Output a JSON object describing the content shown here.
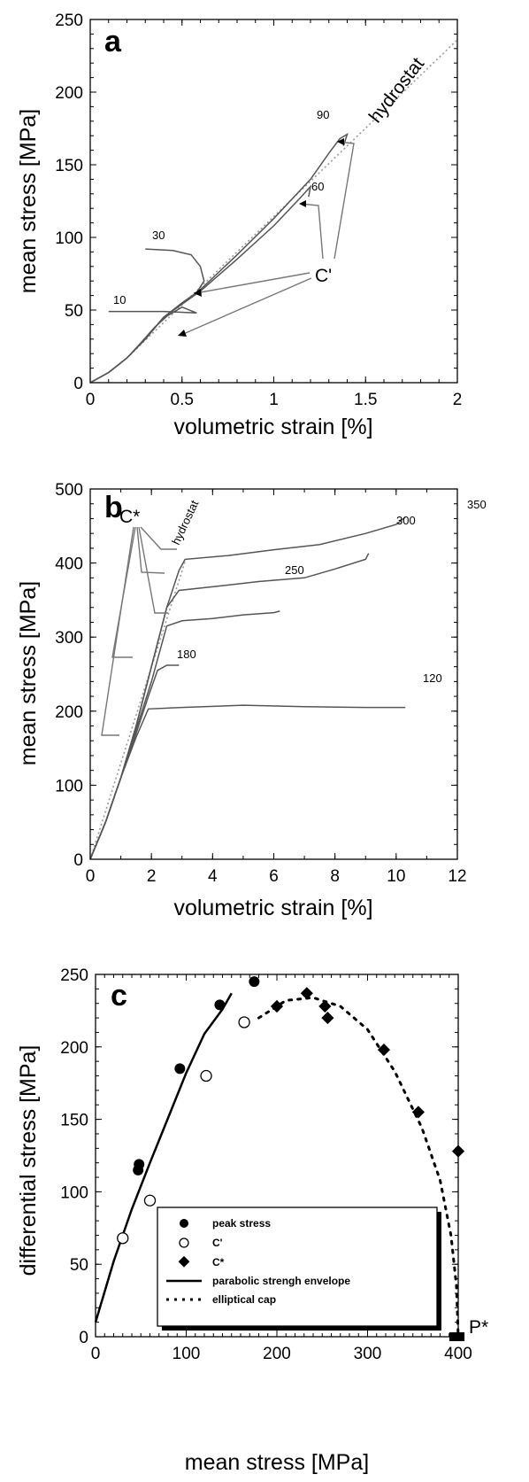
{
  "chart_data": [
    {
      "panel": "a",
      "type": "line",
      "xlabel": "volumetric strain [%]",
      "ylabel": "mean stress [MPa]",
      "xlim": [
        0,
        2
      ],
      "ylim": [
        0,
        250
      ],
      "xticks": [
        "0",
        "0.5",
        "1",
        "1.5",
        "2"
      ],
      "yticks": [
        "0",
        "50",
        "100",
        "150",
        "200",
        "250"
      ],
      "annotations": [
        "C'",
        "hydrostat"
      ],
      "series": [
        {
          "name": "10",
          "points": [
            [
              0,
              0
            ],
            [
              0.1,
              7
            ],
            [
              0.2,
              17
            ],
            [
              0.28,
              28
            ],
            [
              0.35,
              38
            ],
            [
              0.42,
              46
            ],
            [
              0.5,
              52
            ],
            [
              0.58,
              48
            ],
            [
              0.4,
              49
            ],
            [
              0.1,
              49
            ]
          ]
        },
        {
          "name": "30",
          "points": [
            [
              0,
              0
            ],
            [
              0.1,
              7
            ],
            [
              0.2,
              17
            ],
            [
              0.3,
              30
            ],
            [
              0.4,
              45
            ],
            [
              0.5,
              55
            ],
            [
              0.58,
              62
            ],
            [
              0.62,
              70
            ],
            [
              0.6,
              80
            ],
            [
              0.55,
              88
            ],
            [
              0.45,
              91
            ],
            [
              0.3,
              92
            ]
          ]
        },
        {
          "name": "60",
          "points": [
            [
              0,
              0
            ],
            [
              0.1,
              7
            ],
            [
              0.2,
              17
            ],
            [
              0.3,
              30
            ],
            [
              0.4,
              45
            ],
            [
              0.6,
              63
            ],
            [
              0.8,
              85
            ],
            [
              1.0,
              108
            ],
            [
              1.15,
              128
            ],
            [
              1.2,
              135
            ],
            [
              1.19,
              128
            ]
          ]
        },
        {
          "name": "90",
          "points": [
            [
              0,
              0
            ],
            [
              0.1,
              7
            ],
            [
              0.2,
              17
            ],
            [
              0.3,
              30
            ],
            [
              0.4,
              45
            ],
            [
              0.6,
              64
            ],
            [
              0.8,
              88
            ],
            [
              1.0,
              113
            ],
            [
              1.2,
              140
            ],
            [
              1.3,
              158
            ],
            [
              1.36,
              168
            ],
            [
              1.4,
              171
            ],
            [
              1.38,
              163
            ]
          ]
        }
      ],
      "hydrostat": [
        [
          0.2,
          17
        ],
        [
          2,
          236
        ]
      ]
    },
    {
      "panel": "b",
      "type": "line",
      "xlabel": "volumetric strain [%]",
      "ylabel": "mean stress [MPa]",
      "xlim": [
        0,
        12
      ],
      "ylim": [
        0,
        500
      ],
      "xticks": [
        "0",
        "2",
        "4",
        "6",
        "8",
        "10",
        "12"
      ],
      "yticks": [
        "0",
        "100",
        "200",
        "300",
        "400",
        "500"
      ],
      "annotations": [
        "C*",
        "hydrostat"
      ],
      "series": [
        {
          "name": "120",
          "points": [
            [
              0,
              0
            ],
            [
              0.5,
              50
            ],
            [
              1.0,
              110
            ],
            [
              1.5,
              165
            ],
            [
              1.9,
              203
            ],
            [
              3,
              205
            ],
            [
              5,
              208
            ],
            [
              7,
              206
            ],
            [
              9,
              205
            ],
            [
              10.3,
              205
            ]
          ]
        },
        {
          "name": "180",
          "points": [
            [
              0,
              0
            ],
            [
              0.5,
              50
            ],
            [
              1.0,
              110
            ],
            [
              1.5,
              170
            ],
            [
              1.9,
              220
            ],
            [
              2.2,
              255
            ],
            [
              2.5,
              262
            ],
            [
              2.9,
              262
            ]
          ]
        },
        {
          "name": "250",
          "points": [
            [
              0,
              0
            ],
            [
              0.5,
              50
            ],
            [
              1.0,
              110
            ],
            [
              1.5,
              175
            ],
            [
              2.0,
              240
            ],
            [
              2.5,
              315
            ],
            [
              3,
              322
            ],
            [
              4,
              325
            ],
            [
              5,
              330
            ],
            [
              6,
              333
            ],
            [
              6.2,
              335
            ]
          ]
        },
        {
          "name": "300",
          "points": [
            [
              0,
              0
            ],
            [
              0.5,
              50
            ],
            [
              1.0,
              110
            ],
            [
              1.5,
              180
            ],
            [
              2.0,
              260
            ],
            [
              2.5,
              340
            ],
            [
              2.9,
              363
            ],
            [
              4,
              368
            ],
            [
              5.5,
              375
            ],
            [
              7,
              380
            ],
            [
              8,
              392
            ],
            [
              9,
              405
            ],
            [
              9.1,
              413
            ]
          ]
        },
        {
          "name": "350",
          "points": [
            [
              0,
              0
            ],
            [
              0.5,
              50
            ],
            [
              1.0,
              110
            ],
            [
              1.5,
              180
            ],
            [
              2.0,
              260
            ],
            [
              2.5,
              340
            ],
            [
              2.9,
              390
            ],
            [
              3.1,
              405
            ],
            [
              4.5,
              410
            ],
            [
              6,
              418
            ],
            [
              7.5,
              425
            ],
            [
              9,
              440
            ],
            [
              10,
              452
            ],
            [
              10.3,
              462
            ]
          ]
        }
      ],
      "hydrostat": [
        [
          0,
          0
        ],
        [
          3.1,
          402
        ]
      ]
    },
    {
      "panel": "c",
      "type": "scatter",
      "xlabel": "mean stress [MPa]",
      "ylabel": "differential stress [MPa]",
      "xlim": [
        0,
        400
      ],
      "ylim": [
        0,
        250
      ],
      "xticks": [
        "0",
        "100",
        "200",
        "300",
        "400"
      ],
      "yticks": [
        "0",
        "50",
        "100",
        "150",
        "200",
        "250"
      ],
      "annotations": [
        "P*"
      ],
      "legend": [
        "peak stress",
        "C'",
        "C*",
        "parabolic strengh envelope",
        "elliptical cap"
      ],
      "peak_stress": [
        [
          47,
          115
        ],
        [
          48,
          119
        ],
        [
          93,
          185
        ],
        [
          137,
          229
        ],
        [
          175,
          245
        ]
      ],
      "c_prime": [
        [
          30,
          68
        ],
        [
          60,
          94
        ],
        [
          122,
          180
        ],
        [
          164,
          217
        ]
      ],
      "c_star": [
        [
          200,
          228
        ],
        [
          233,
          237
        ],
        [
          253,
          228
        ],
        [
          256,
          220
        ],
        [
          318,
          198
        ],
        [
          356,
          155
        ],
        [
          400,
          128
        ]
      ],
      "p_star": [
        [
          395,
          0
        ],
        [
          402,
          0
        ]
      ],
      "parabolic_envelope": [
        [
          0,
          10
        ],
        [
          20,
          52
        ],
        [
          40,
          88
        ],
        [
          60,
          120
        ],
        [
          80,
          151
        ],
        [
          100,
          182
        ],
        [
          120,
          209
        ],
        [
          140,
          226
        ],
        [
          150,
          237
        ]
      ],
      "elliptical_cap": [
        [
          180,
          220
        ],
        [
          210,
          232
        ],
        [
          240,
          234
        ],
        [
          270,
          228
        ],
        [
          300,
          212
        ],
        [
          330,
          183
        ],
        [
          360,
          144
        ],
        [
          380,
          108
        ],
        [
          392,
          70
        ],
        [
          398,
          35
        ],
        [
          400,
          0
        ]
      ]
    }
  ]
}
